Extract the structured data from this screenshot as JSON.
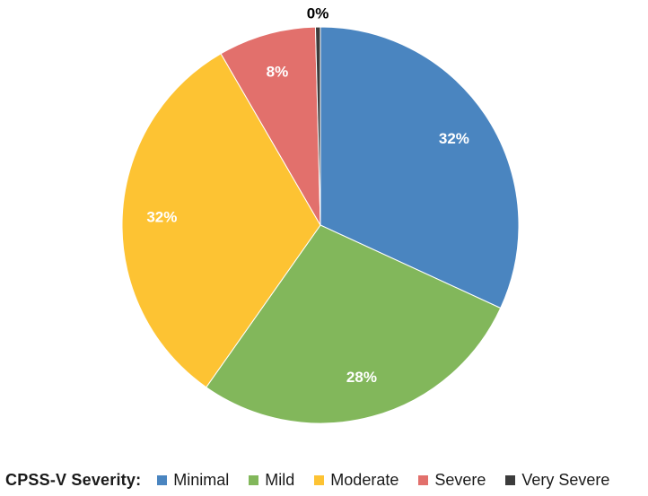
{
  "chart_data": {
    "type": "pie",
    "title": "",
    "categories": [
      "Minimal",
      "Mild",
      "Moderate",
      "Severe",
      "Very Severe"
    ],
    "values": [
      32,
      28,
      32,
      8,
      0.4
    ],
    "data_labels": [
      "32%",
      "28%",
      "32%",
      "8%",
      "0%"
    ],
    "colors": [
      "#4a85c0",
      "#82b75b",
      "#fdc333",
      "#e2706c",
      "#3c3c3c"
    ],
    "label_colors": [
      "#ffffff",
      "#ffffff",
      "#ffffff",
      "#ffffff",
      "#000000"
    ],
    "legend_title": "CPSS-V Severity:",
    "legend_position": "bottom",
    "start_angle_deg": 0,
    "direction": "clockwise"
  }
}
